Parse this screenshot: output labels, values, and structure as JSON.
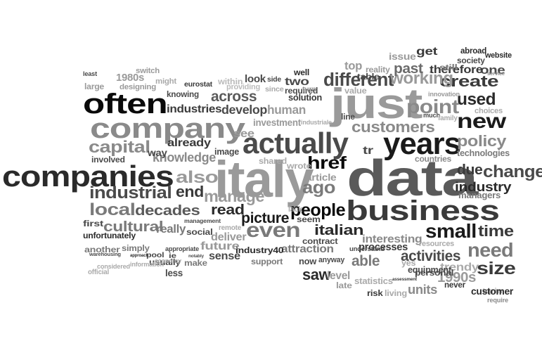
{
  "words": [
    {
      "text": "data",
      "shade": "#5a5a5a",
      "vertical": false
    },
    {
      "text": "business",
      "shade": "#3a3a3a",
      "vertical": false
    },
    {
      "text": "just",
      "shade": "#9a9a9a",
      "vertical": false
    },
    {
      "text": "italy",
      "shade": "#9a9a9a",
      "vertical": false
    },
    {
      "text": "companies",
      "shade": "#2a2a2a",
      "vertical": false
    },
    {
      "text": "company",
      "shade": "#8a8a8a",
      "vertical": false
    },
    {
      "text": "actually",
      "shade": "#4a4a4a",
      "vertical": false
    },
    {
      "text": "years",
      "shade": "#1a1a1a",
      "vertical": false
    },
    {
      "text": "often",
      "shade": "#0a0a0a",
      "vertical": false
    },
    {
      "text": "new",
      "shade": "#1a1a1a",
      "vertical": false
    },
    {
      "text": "even",
      "shade": "#7a7a7a",
      "vertical": false
    },
    {
      "text": "used",
      "shade": "#2a2a2a",
      "vertical": false
    },
    {
      "text": "point",
      "shade": "#8a8a8a",
      "vertical": false
    },
    {
      "text": "different",
      "shade": "#4a4a4a",
      "vertical": false
    },
    {
      "text": "create",
      "shade": "#3a3a3a",
      "vertical": false
    },
    {
      "text": "customers",
      "shade": "#8a8a8a",
      "vertical": false
    },
    {
      "text": "working",
      "shade": "#9a9a9a",
      "vertical": false
    },
    {
      "text": "past",
      "shade": "#6a6a6a",
      "vertical": false
    },
    {
      "text": "one",
      "shade": "#4a4a4a",
      "vertical": false
    },
    {
      "text": "capital",
      "shade": "#8a8a8a",
      "vertical": false
    },
    {
      "text": "knowledge",
      "shade": "#8a8a8a",
      "vertical": false
    },
    {
      "text": "also",
      "shade": "#9a9a9a",
      "vertical": false
    },
    {
      "text": "policy",
      "shade": "#8a8a8a",
      "vertical": false
    },
    {
      "text": "change",
      "shade": "#4a4a4a",
      "vertical": false
    },
    {
      "text": "due",
      "shade": "#3a3a3a",
      "vertical": false
    },
    {
      "text": "industry",
      "shade": "#2a2a2a",
      "vertical": false
    },
    {
      "text": "industrial",
      "shade": "#4a4a4a",
      "vertical": false
    },
    {
      "text": "manage",
      "shade": "#9a9a9a",
      "vertical": false
    },
    {
      "text": "end",
      "shade": "#3a3a3a",
      "vertical": false
    },
    {
      "text": "href",
      "shade": "#0a0a0a",
      "vertical": false
    },
    {
      "text": "ago",
      "shade": "#7a7a7a",
      "vertical": false
    },
    {
      "text": "people",
      "shade": "#0a0a0a",
      "vertical": false
    },
    {
      "text": "local",
      "shade": "#7a7a7a",
      "vertical": false
    },
    {
      "text": "decades",
      "shade": "#5a5a5a",
      "vertical": false
    },
    {
      "text": "read",
      "shade": "#2a2a2a",
      "vertical": false
    },
    {
      "text": "picture",
      "shade": "#1a1a1a",
      "vertical": false
    },
    {
      "text": "small",
      "shade": "#1a1a1a",
      "vertical": false
    },
    {
      "text": "time",
      "shade": "#3a3a3a",
      "vertical": false
    },
    {
      "text": "italian",
      "shade": "#2a2a2a",
      "vertical": false
    },
    {
      "text": "need",
      "shade": "#7a7a7a",
      "vertical": false
    },
    {
      "text": "size",
      "shade": "#3a3a3a",
      "vertical": false
    },
    {
      "text": "activities",
      "shade": "#4a4a4a",
      "vertical": false
    },
    {
      "text": "able",
      "shade": "#7a7a7a",
      "vertical": false
    },
    {
      "text": "saw",
      "shade": "#2a2a2a",
      "vertical": false
    },
    {
      "text": "1990s",
      "shade": "#9a9a9a",
      "vertical": false
    },
    {
      "text": "units",
      "shade": "#8a8a8a",
      "vertical": false
    },
    {
      "text": "cultural",
      "shade": "#7a7a7a",
      "vertical": false
    },
    {
      "text": "really",
      "shade": "#7a7a7a",
      "vertical": false
    },
    {
      "text": "future",
      "shade": "#9a9a9a",
      "vertical": false
    },
    {
      "text": "sense",
      "shade": "#4a4a4a",
      "vertical": false
    },
    {
      "text": "industries",
      "shade": "#3a3a3a",
      "vertical": false
    },
    {
      "text": "human",
      "shade": "#9a9a9a",
      "vertical": false
    },
    {
      "text": "across",
      "shade": "#5a5a5a",
      "vertical": false
    },
    {
      "text": "develop",
      "shade": "#4a4a4a",
      "vertical": false
    },
    {
      "text": "investment",
      "shade": "#9a9a9a",
      "vertical": false
    },
    {
      "text": "see",
      "shade": "#9a9a9a",
      "vertical": false
    },
    {
      "text": "already",
      "shade": "#3a3a3a",
      "vertical": false
    },
    {
      "text": "solution",
      "shade": "#3a3a3a",
      "vertical": false
    },
    {
      "text": "two",
      "shade": "#4a4a4a",
      "vertical": false
    },
    {
      "text": "top",
      "shade": "#9a9a9a",
      "vertical": false
    },
    {
      "text": "therefore",
      "shade": "#3a3a3a",
      "vertical": false
    },
    {
      "text": "get",
      "shade": "#3a3a3a",
      "vertical": false
    },
    {
      "text": "interesting",
      "shade": "#8a8a8a",
      "vertical": false
    },
    {
      "text": "processes",
      "shade": "#3a3a3a",
      "vertical": false
    },
    {
      "text": "attraction",
      "shade": "#7a7a7a",
      "vertical": false
    },
    {
      "text": "deliver",
      "shade": "#9a9a9a",
      "vertical": false
    },
    {
      "text": "level",
      "shade": "#9a9a9a",
      "vertical": false
    },
    {
      "text": "trendy",
      "shade": "#aaaaaa",
      "vertical": false
    },
    {
      "text": "technologies",
      "shade": "#7a7a7a",
      "vertical": false
    },
    {
      "text": "managers",
      "shade": "#7a7a7a",
      "vertical": false
    },
    {
      "text": "1980s",
      "shade": "#9a9a9a",
      "vertical": false
    },
    {
      "text": "eurostat",
      "shade": "#3a3a3a",
      "vertical": false
    },
    {
      "text": "knowing",
      "shade": "#4a4a4a",
      "vertical": false
    },
    {
      "text": "designing",
      "shade": "#9a9a9a",
      "vertical": false
    },
    {
      "text": "switch",
      "shade": "#9a9a9a",
      "vertical": false
    },
    {
      "text": "might",
      "shade": "#aaaaaa",
      "vertical": false
    },
    {
      "text": "large",
      "shade": "#9a9a9a",
      "vertical": false
    },
    {
      "text": "least",
      "shade": "#4a4a4a",
      "vertical": false
    },
    {
      "text": "within",
      "shade": "#bbbbbb",
      "vertical": false
    },
    {
      "text": "look",
      "shade": "#4a4a4a",
      "vertical": false
    },
    {
      "text": "providing",
      "shade": "#bbbbbb",
      "vertical": false
    },
    {
      "text": "side",
      "shade": "#4a4a4a",
      "vertical": false
    },
    {
      "text": "since",
      "shade": "#aaaaaa",
      "vertical": false
    },
    {
      "text": "required",
      "shade": "#4a4a4a",
      "vertical": false
    },
    {
      "text": "well",
      "shade": "#2a2a2a",
      "vertical": false
    },
    {
      "text": "turn",
      "shade": "#9a9a9a",
      "vertical": false
    },
    {
      "text": "value",
      "shade": "#aaaaaa",
      "vertical": false
    },
    {
      "text": "table",
      "shade": "#4a4a4a",
      "vertical": false
    },
    {
      "text": "reality",
      "shade": "#9a9a9a",
      "vertical": false
    },
    {
      "text": "issue",
      "shade": "#9a9a9a",
      "vertical": false
    },
    {
      "text": "abroad",
      "shade": "#2a2a2a",
      "vertical": false
    },
    {
      "text": "website",
      "shade": "#2a2a2a",
      "vertical": false
    },
    {
      "text": "still",
      "shade": "#7a7a7a",
      "vertical": false
    },
    {
      "text": "society",
      "shade": "#4a4a4a",
      "vertical": false
    },
    {
      "text": "service",
      "shade": "#8a8a8a",
      "vertical": false
    },
    {
      "text": "innovation",
      "shade": "#9a9a9a",
      "vertical": false
    },
    {
      "text": "choices",
      "shade": "#aaaaaa",
      "vertical": false
    },
    {
      "text": "much",
      "shade": "#4a4a4a",
      "vertical": false
    },
    {
      "text": "family",
      "shade": "#aaaaaa",
      "vertical": false
    },
    {
      "text": "industriale",
      "shade": "#aaaaaa",
      "vertical": false
    },
    {
      "text": "line",
      "shade": "#4a4a4a",
      "vertical": false
    },
    {
      "text": "tr",
      "shade": "#4a4a4a",
      "vertical": false
    },
    {
      "text": "wrote",
      "shade": "#aaaaaa",
      "vertical": false
    },
    {
      "text": "countries",
      "shade": "#8a8a8a",
      "vertical": false
    },
    {
      "text": "article",
      "shade": "#9a9a9a",
      "vertical": false
    },
    {
      "text": "shared",
      "shade": "#aaaaaa",
      "vertical": false
    },
    {
      "text": "image",
      "shade": "#4a4a4a",
      "vertical": false
    },
    {
      "text": "way",
      "shade": "#4a4a4a",
      "vertical": false
    },
    {
      "text": "involved",
      "shade": "#4a4a4a",
      "vertical": false
    },
    {
      "text": "lack",
      "shade": "#aaaaaa",
      "vertical": false
    },
    {
      "text": "seem",
      "shade": "#4a4a4a",
      "vertical": false
    },
    {
      "text": "contract",
      "shade": "#4a4a4a",
      "vertical": false
    },
    {
      "text": "anyway",
      "shade": "#4a4a4a",
      "vertical": false
    },
    {
      "text": "now",
      "shade": "#4a4a4a",
      "vertical": false
    },
    {
      "text": "understand",
      "shade": "#4a4a4a",
      "vertical": false
    },
    {
      "text": "yes",
      "shade": "#aaaaaa",
      "vertical": false
    },
    {
      "text": "personal",
      "shade": "#4a4a4a",
      "vertical": false
    },
    {
      "text": "equipment",
      "shade": "#4a4a4a",
      "vertical": false
    },
    {
      "text": "resources",
      "shade": "#aaaaaa",
      "vertical": false
    },
    {
      "text": "never",
      "shade": "#3a3a3a",
      "vertical": false
    },
    {
      "text": "turin",
      "shade": "#aaaaaa",
      "vertical": false
    },
    {
      "text": "customer",
      "shade": "#2a2a2a",
      "vertical": false
    },
    {
      "text": "require",
      "shade": "#8a8a8a",
      "vertical": false
    },
    {
      "text": "risk",
      "shade": "#3a3a3a",
      "vertical": false
    },
    {
      "text": "living",
      "shade": "#aaaaaa",
      "vertical": false
    },
    {
      "text": "statistics",
      "shade": "#aaaaaa",
      "vertical": false
    },
    {
      "text": "late",
      "shade": "#9a9a9a",
      "vertical": false
    },
    {
      "text": "assessment",
      "shade": "#3a3a3a",
      "vertical": false
    },
    {
      "text": "support",
      "shade": "#7a7a7a",
      "vertical": false
    },
    {
      "text": "industry40",
      "shade": "#2a2a2a",
      "vertical": false
    },
    {
      "text": "make",
      "shade": "#7a7a7a",
      "vertical": false
    },
    {
      "text": "notably",
      "shade": "#4a4a4a",
      "vertical": false
    },
    {
      "text": "remote",
      "shade": "#aaaaaa",
      "vertical": false
    },
    {
      "text": "social",
      "shade": "#4a4a4a",
      "vertical": false
    },
    {
      "text": "management",
      "shade": "#4a4a4a",
      "vertical": false
    },
    {
      "text": "first",
      "shade": "#4a4a4a",
      "vertical": false
    },
    {
      "text": "unfortunately",
      "shade": "#2a2a2a",
      "vertical": false
    },
    {
      "text": "another",
      "shade": "#7a7a7a",
      "vertical": false
    },
    {
      "text": "simply",
      "shade": "#7a7a7a",
      "vertical": false
    },
    {
      "text": "usually",
      "shade": "#4a4a4a",
      "vertical": false
    },
    {
      "text": "appropriate",
      "shade": "#4a4a4a",
      "vertical": false
    },
    {
      "text": "warehousing",
      "shade": "#4a4a4a",
      "vertical": false
    },
    {
      "text": "pool",
      "shade": "#4a4a4a",
      "vertical": false
    },
    {
      "text": "approach",
      "shade": "#2a2a2a",
      "vertical": false
    },
    {
      "text": "considered",
      "shade": "#aaaaaa",
      "vertical": false
    },
    {
      "text": "information",
      "shade": "#aaaaaa",
      "vertical": false
    },
    {
      "text": "official",
      "shade": "#aaaaaa",
      "vertical": false
    },
    {
      "text": "less",
      "shade": "#4a4a4a",
      "vertical": false
    },
    {
      "text": "economy",
      "shade": "#aaaaaa",
      "vertical": false
    },
    {
      "text": "ie",
      "shade": "#4a4a4a",
      "vertical": false
    }
  ]
}
